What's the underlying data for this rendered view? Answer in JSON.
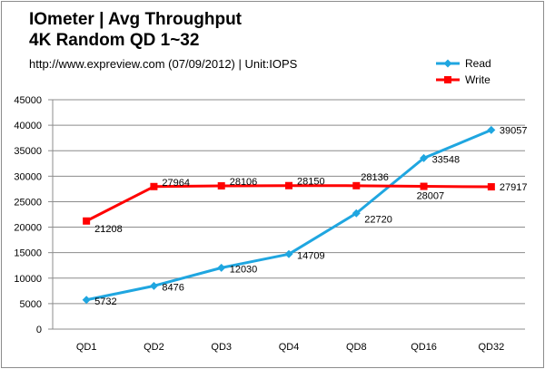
{
  "chart_data": {
    "type": "line",
    "title_line1": "IOmeter  | Avg Throughput",
    "title_line2": "4K Random QD 1~32",
    "subtitle": "http://www.expreview.com (07/09/2012) | Unit:IOPS",
    "categories": [
      "QD1",
      "QD2",
      "QD3",
      "QD4",
      "QD8",
      "QD16",
      "QD32"
    ],
    "series": [
      {
        "name": "Read",
        "color": "#1fa6e0",
        "marker": "diamond",
        "values": [
          5732,
          8476,
          12030,
          14709,
          22720,
          33548,
          39057
        ]
      },
      {
        "name": "Write",
        "color": "#ff0000",
        "marker": "square",
        "values": [
          21208,
          27964,
          28106,
          28150,
          28136,
          28007,
          27917
        ]
      }
    ],
    "yticks": [
      0,
      5000,
      10000,
      15000,
      20000,
      25000,
      30000,
      35000,
      40000,
      45000
    ],
    "ylim": [
      0,
      45000
    ],
    "grid": true,
    "legend": "top-right"
  }
}
